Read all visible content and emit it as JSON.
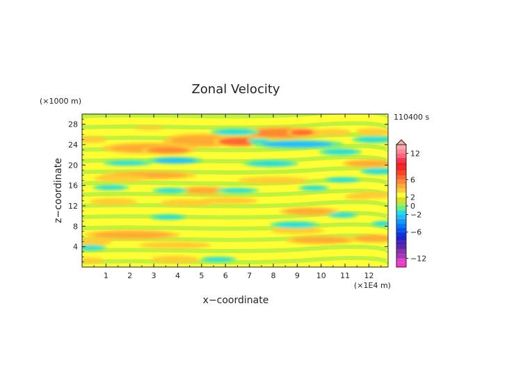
{
  "chart_data": {
    "type": "heatmap",
    "title": "Zonal Velocity",
    "xlabel": "x−coordinate",
    "ylabel": "z−coordinate",
    "x_unit": "(×1E4 m)",
    "y_unit": "(×1000 m)",
    "time_label": "110400 s",
    "xlim": [
      0,
      12.8
    ],
    "ylim": [
      0,
      30
    ],
    "x_ticks": [
      "1",
      "2",
      "3",
      "4",
      "5",
      "6",
      "7",
      "8",
      "9",
      "10",
      "11",
      "12"
    ],
    "y_ticks": [
      "4",
      "8",
      "12",
      "16",
      "20",
      "24",
      "28"
    ],
    "colorbar": {
      "levels": [
        -14,
        -13,
        -12,
        -11,
        -10,
        -9,
        -8,
        -7,
        -6,
        -5,
        -4,
        -3,
        -2,
        -1,
        0,
        1,
        2,
        3,
        4,
        5,
        6,
        7,
        8,
        9,
        10,
        11,
        12,
        13,
        14
      ],
      "colors": [
        "#ff33cc",
        "#dd44cc",
        "#aa33bb",
        "#8833aa",
        "#6622aa",
        "#4422bb",
        "#2222cc",
        "#1133dd",
        "#0055ee",
        "#0077ff",
        "#1199ff",
        "#22bbff",
        "#22dddd",
        "#66ee88",
        "#aaee44",
        "#dddd22",
        "#ffff33",
        "#ffcc33",
        "#ffaa33",
        "#ff8833",
        "#ff6633",
        "#ff4422",
        "#ff2222",
        "#ee2222",
        "#ff3355",
        "#ff6677",
        "#ff8899",
        "#ffaaaa"
      ],
      "tick_labels": [
        "12",
        "6",
        "2",
        "0",
        "−2",
        "−6",
        "−12"
      ],
      "tick_values": [
        12,
        6,
        2,
        0,
        -2,
        -6,
        -12
      ],
      "extend": "max"
    },
    "blobs": [
      {
        "x": 5.0,
        "z": 24.8,
        "rx": 1.3,
        "rz": 1.0,
        "v": 4
      },
      {
        "x": 6.6,
        "z": 24.6,
        "rx": 0.9,
        "rz": 0.8,
        "v": 6
      },
      {
        "x": 8.4,
        "z": 26.3,
        "rx": 1.5,
        "rz": 0.9,
        "v": 5
      },
      {
        "x": 9.2,
        "z": 26.4,
        "rx": 0.5,
        "rz": 0.6,
        "v": 6
      },
      {
        "x": 10.5,
        "z": 26.4,
        "rx": 0.6,
        "rz": 0.5,
        "v": 3
      },
      {
        "x": 12.2,
        "z": 26.5,
        "rx": 0.6,
        "rz": 0.5,
        "v": 3
      },
      {
        "x": 2.8,
        "z": 23.3,
        "rx": 1.6,
        "rz": 0.8,
        "v": 4
      },
      {
        "x": 3.6,
        "z": 22.9,
        "rx": 0.9,
        "rz": 0.6,
        "v": 5
      },
      {
        "x": 2.8,
        "z": 18.0,
        "rx": 1.6,
        "rz": 0.6,
        "v": 4
      },
      {
        "x": 1.6,
        "z": 17.4,
        "rx": 0.9,
        "rz": 0.5,
        "v": 3
      },
      {
        "x": 5.1,
        "z": 15.0,
        "rx": 0.9,
        "rz": 0.6,
        "v": 4
      },
      {
        "x": 6.1,
        "z": 13.0,
        "rx": 1.0,
        "rz": 0.5,
        "v": 3
      },
      {
        "x": 4.4,
        "z": 12.6,
        "rx": 0.9,
        "rz": 0.5,
        "v": 3
      },
      {
        "x": 9.5,
        "z": 10.9,
        "rx": 1.0,
        "rz": 0.6,
        "v": 4
      },
      {
        "x": 8.0,
        "z": 17.0,
        "rx": 1.2,
        "rz": 0.5,
        "v": 3
      },
      {
        "x": 12.0,
        "z": 20.3,
        "rx": 0.9,
        "rz": 0.6,
        "v": 4
      },
      {
        "x": 12.1,
        "z": 14.1,
        "rx": 0.7,
        "rz": 0.5,
        "v": 3
      },
      {
        "x": 11.6,
        "z": 13.8,
        "rx": 0.5,
        "rz": 0.4,
        "v": 3
      },
      {
        "x": 2.1,
        "z": 6.3,
        "rx": 1.6,
        "rz": 0.7,
        "v": 4
      },
      {
        "x": 0.5,
        "z": 4.9,
        "rx": 0.6,
        "rz": 0.5,
        "v": 3
      },
      {
        "x": 3.9,
        "z": 4.3,
        "rx": 1.2,
        "rz": 0.5,
        "v": 3
      },
      {
        "x": 0.4,
        "z": 1.3,
        "rx": 0.4,
        "rz": 0.4,
        "v": 3
      },
      {
        "x": 3.9,
        "z": 1.5,
        "rx": 0.8,
        "rz": 0.5,
        "v": 3
      },
      {
        "x": 10.0,
        "z": 5.3,
        "rx": 1.2,
        "rz": 0.6,
        "v": 4
      },
      {
        "x": 12.2,
        "z": 5.6,
        "rx": 0.8,
        "rz": 0.6,
        "v": 4
      },
      {
        "x": 9.0,
        "z": 7.2,
        "rx": 0.9,
        "rz": 0.5,
        "v": 3
      },
      {
        "x": 2.8,
        "z": 27.3,
        "rx": 0.5,
        "rz": 0.3,
        "v": 3
      },
      {
        "x": 1.3,
        "z": 12.8,
        "rx": 0.8,
        "rz": 0.5,
        "v": 3
      },
      {
        "x": 0.4,
        "z": 25.0,
        "rx": 0.5,
        "rz": 0.5,
        "v": 3
      },
      {
        "x": 6.4,
        "z": 26.5,
        "rx": 0.8,
        "rz": 0.5,
        "v": -2
      },
      {
        "x": 9.0,
        "z": 24.1,
        "rx": 1.5,
        "rz": 0.6,
        "v": -3
      },
      {
        "x": 12.2,
        "z": 25.0,
        "rx": 0.7,
        "rz": 0.5,
        "v": -2
      },
      {
        "x": 10.8,
        "z": 22.6,
        "rx": 0.7,
        "rz": 0.5,
        "v": -2
      },
      {
        "x": 3.9,
        "z": 20.9,
        "rx": 0.9,
        "rz": 0.5,
        "v": -3
      },
      {
        "x": 1.9,
        "z": 20.4,
        "rx": 0.8,
        "rz": 0.4,
        "v": -2
      },
      {
        "x": 7.9,
        "z": 20.3,
        "rx": 0.9,
        "rz": 0.5,
        "v": -2
      },
      {
        "x": 12.4,
        "z": 18.8,
        "rx": 0.6,
        "rz": 0.5,
        "v": -2
      },
      {
        "x": 10.9,
        "z": 17.1,
        "rx": 0.6,
        "rz": 0.4,
        "v": -2
      },
      {
        "x": 3.7,
        "z": 15.0,
        "rx": 0.6,
        "rz": 0.4,
        "v": -2
      },
      {
        "x": 1.2,
        "z": 15.6,
        "rx": 0.6,
        "rz": 0.4,
        "v": -2
      },
      {
        "x": 6.5,
        "z": 15.0,
        "rx": 0.7,
        "rz": 0.4,
        "v": -2
      },
      {
        "x": 9.7,
        "z": 15.5,
        "rx": 0.5,
        "rz": 0.4,
        "v": -2
      },
      {
        "x": 8.9,
        "z": 8.3,
        "rx": 0.8,
        "rz": 0.5,
        "v": -2
      },
      {
        "x": 12.6,
        "z": 8.5,
        "rx": 0.4,
        "rz": 0.4,
        "v": -2
      },
      {
        "x": 0.4,
        "z": 3.8,
        "rx": 0.5,
        "rz": 0.4,
        "v": -2
      },
      {
        "x": 5.7,
        "z": 1.5,
        "rx": 0.6,
        "rz": 0.4,
        "v": -2
      },
      {
        "x": 3.6,
        "z": 9.8,
        "rx": 0.6,
        "rz": 0.4,
        "v": -2
      },
      {
        "x": 10.9,
        "z": 10.2,
        "rx": 0.5,
        "rz": 0.4,
        "v": -2
      },
      {
        "x": 7.4,
        "z": 24.8,
        "rx": 0.4,
        "rz": 0.3,
        "v": -2
      }
    ]
  }
}
